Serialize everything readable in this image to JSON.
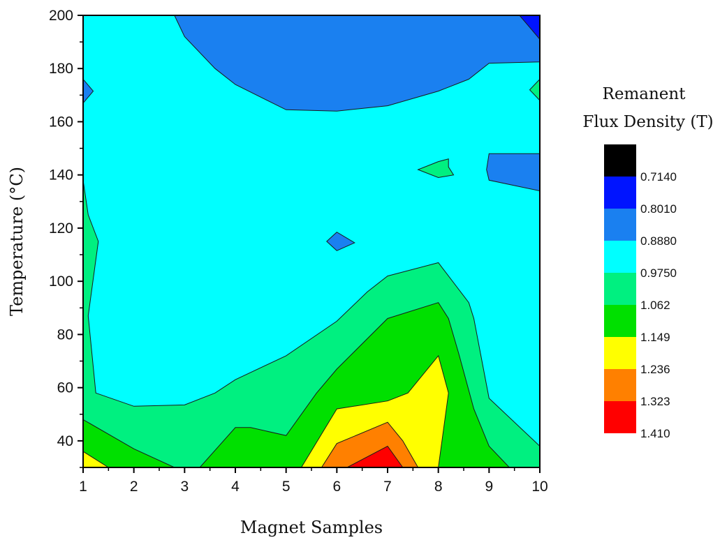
{
  "chart_data": {
    "type": "contour",
    "xlabel": "Magnet Samples",
    "ylabel": "Temperature (°C)",
    "xlim": [
      1,
      10
    ],
    "ylim": [
      30,
      200
    ],
    "x_ticks": [
      "1",
      "2",
      "3",
      "4",
      "5",
      "6",
      "7",
      "8",
      "9",
      "10"
    ],
    "y_ticks": [
      "40",
      "60",
      "80",
      "100",
      "120",
      "140",
      "160",
      "180",
      "200"
    ],
    "legend": {
      "title_line1": "Remanent",
      "title_line2": "Flux Density (T)",
      "labels": [
        "0.7140",
        "0.8010",
        "0.8880",
        "0.9750",
        "1.062",
        "1.149",
        "1.236",
        "1.323",
        "1.410"
      ],
      "colors": [
        "#000000",
        "#0014ff",
        "#1a80f0",
        "#00ffff",
        "#00f080",
        "#00e000",
        "#ffff00",
        "#ff8000",
        "#ff0000"
      ]
    },
    "levels": [
      0.714,
      0.801,
      0.888,
      0.975,
      1.062,
      1.149,
      1.236,
      1.323,
      1.41
    ],
    "regions": [
      {
        "level_band": "0.8880-0.9750",
        "color": "#00ffff",
        "boundary": [
          [
            1,
            30
          ],
          [
            10,
            30
          ],
          [
            10,
            200
          ],
          [
            1,
            200
          ]
        ]
      },
      {
        "level_band": "0.9750-1.062",
        "color": "#00f080",
        "boundary": [
          [
            1,
            30
          ],
          [
            1,
            138
          ],
          [
            1.1,
            125
          ],
          [
            1.3,
            115
          ],
          [
            1.1,
            87
          ],
          [
            1.25,
            58
          ],
          [
            2,
            53
          ],
          [
            3,
            53.5
          ],
          [
            3.6,
            58
          ],
          [
            4,
            63
          ],
          [
            5,
            72
          ],
          [
            6,
            85
          ],
          [
            6.6,
            96
          ],
          [
            7,
            102
          ],
          [
            8,
            107
          ],
          [
            8.6,
            92
          ],
          [
            8.7,
            86
          ],
          [
            9,
            56
          ],
          [
            10,
            38
          ],
          [
            10,
            30
          ]
        ]
      },
      {
        "level_band": "1.062-1.149",
        "color": "#00e000",
        "boundary": [
          [
            1,
            30
          ],
          [
            1,
            48
          ],
          [
            2,
            37
          ],
          [
            2.8,
            30
          ],
          [
            3.3,
            30
          ],
          [
            4,
            45
          ],
          [
            4.3,
            45
          ],
          [
            5,
            42
          ],
          [
            5.6,
            58
          ],
          [
            6,
            67
          ],
          [
            7,
            86
          ],
          [
            8,
            92
          ],
          [
            8.2,
            86
          ],
          [
            8.4,
            73
          ],
          [
            8.7,
            52
          ],
          [
            9,
            38
          ],
          [
            9.4,
            30
          ]
        ]
      },
      {
        "level_band": "1.149-1.236",
        "color": "#ffff00",
        "boundary": [
          [
            1,
            30
          ],
          [
            1,
            36
          ],
          [
            1.5,
            30
          ],
          [
            5.3,
            30
          ],
          [
            6,
            52
          ],
          [
            7,
            55
          ],
          [
            7.4,
            58
          ],
          [
            8,
            72
          ],
          [
            8.2,
            58
          ],
          [
            8,
            30
          ]
        ]
      },
      {
        "level_band": "1.236-1.323",
        "color": "#ff8000",
        "boundary": [
          [
            5.7,
            30
          ],
          [
            6,
            39
          ],
          [
            7,
            47
          ],
          [
            7.3,
            40
          ],
          [
            7.6,
            30
          ]
        ]
      },
      {
        "level_band": "1.323-1.410",
        "color": "#ff0000",
        "boundary": [
          [
            6.2,
            30
          ],
          [
            7,
            38
          ],
          [
            7.3,
            30
          ]
        ]
      },
      {
        "level_band": "0.8010-0.8880",
        "color": "#1a80f0",
        "boundary": [
          [
            2.8,
            200
          ],
          [
            3,
            192
          ],
          [
            3.6,
            180
          ],
          [
            4,
            174
          ],
          [
            5,
            164.5
          ],
          [
            6,
            164
          ],
          [
            7,
            166
          ],
          [
            8,
            171.5
          ],
          [
            8.6,
            176
          ],
          [
            9,
            182
          ],
          [
            10,
            182.5
          ],
          [
            10,
            200
          ]
        ]
      },
      {
        "level_band": "0.8010-0.8880",
        "color": "#1a80f0",
        "boundary": [
          [
            1,
            167
          ],
          [
            1.2,
            171.5
          ],
          [
            1,
            176
          ]
        ]
      },
      {
        "level_band": "0.8010-0.8880",
        "color": "#1a80f0",
        "boundary": [
          [
            5.8,
            115
          ],
          [
            6,
            118.5
          ],
          [
            6.35,
            114.5
          ],
          [
            6,
            111.5
          ]
        ]
      },
      {
        "level_band": "0.8010-0.8880",
        "color": "#1a80f0",
        "boundary": [
          [
            9,
            148
          ],
          [
            8.95,
            142
          ],
          [
            9,
            138
          ],
          [
            10,
            134
          ],
          [
            10,
            148
          ]
        ]
      },
      {
        "level_band": "0.7140-0.8010",
        "color": "#0014ff",
        "boundary": [
          [
            9.6,
            200
          ],
          [
            10,
            191
          ],
          [
            10,
            200
          ]
        ]
      },
      {
        "level_band": "0.9750-1.062",
        "color": "#00f080",
        "boundary": [
          [
            7.6,
            142
          ],
          [
            8,
            139
          ],
          [
            8.3,
            140
          ],
          [
            8.2,
            143
          ],
          [
            8.2,
            146
          ],
          [
            8,
            145
          ]
        ]
      },
      {
        "level_band": "0.9750-1.062",
        "color": "#00f080",
        "boundary": [
          [
            10,
            168
          ],
          [
            9.8,
            172
          ],
          [
            10,
            176
          ]
        ]
      }
    ]
  }
}
